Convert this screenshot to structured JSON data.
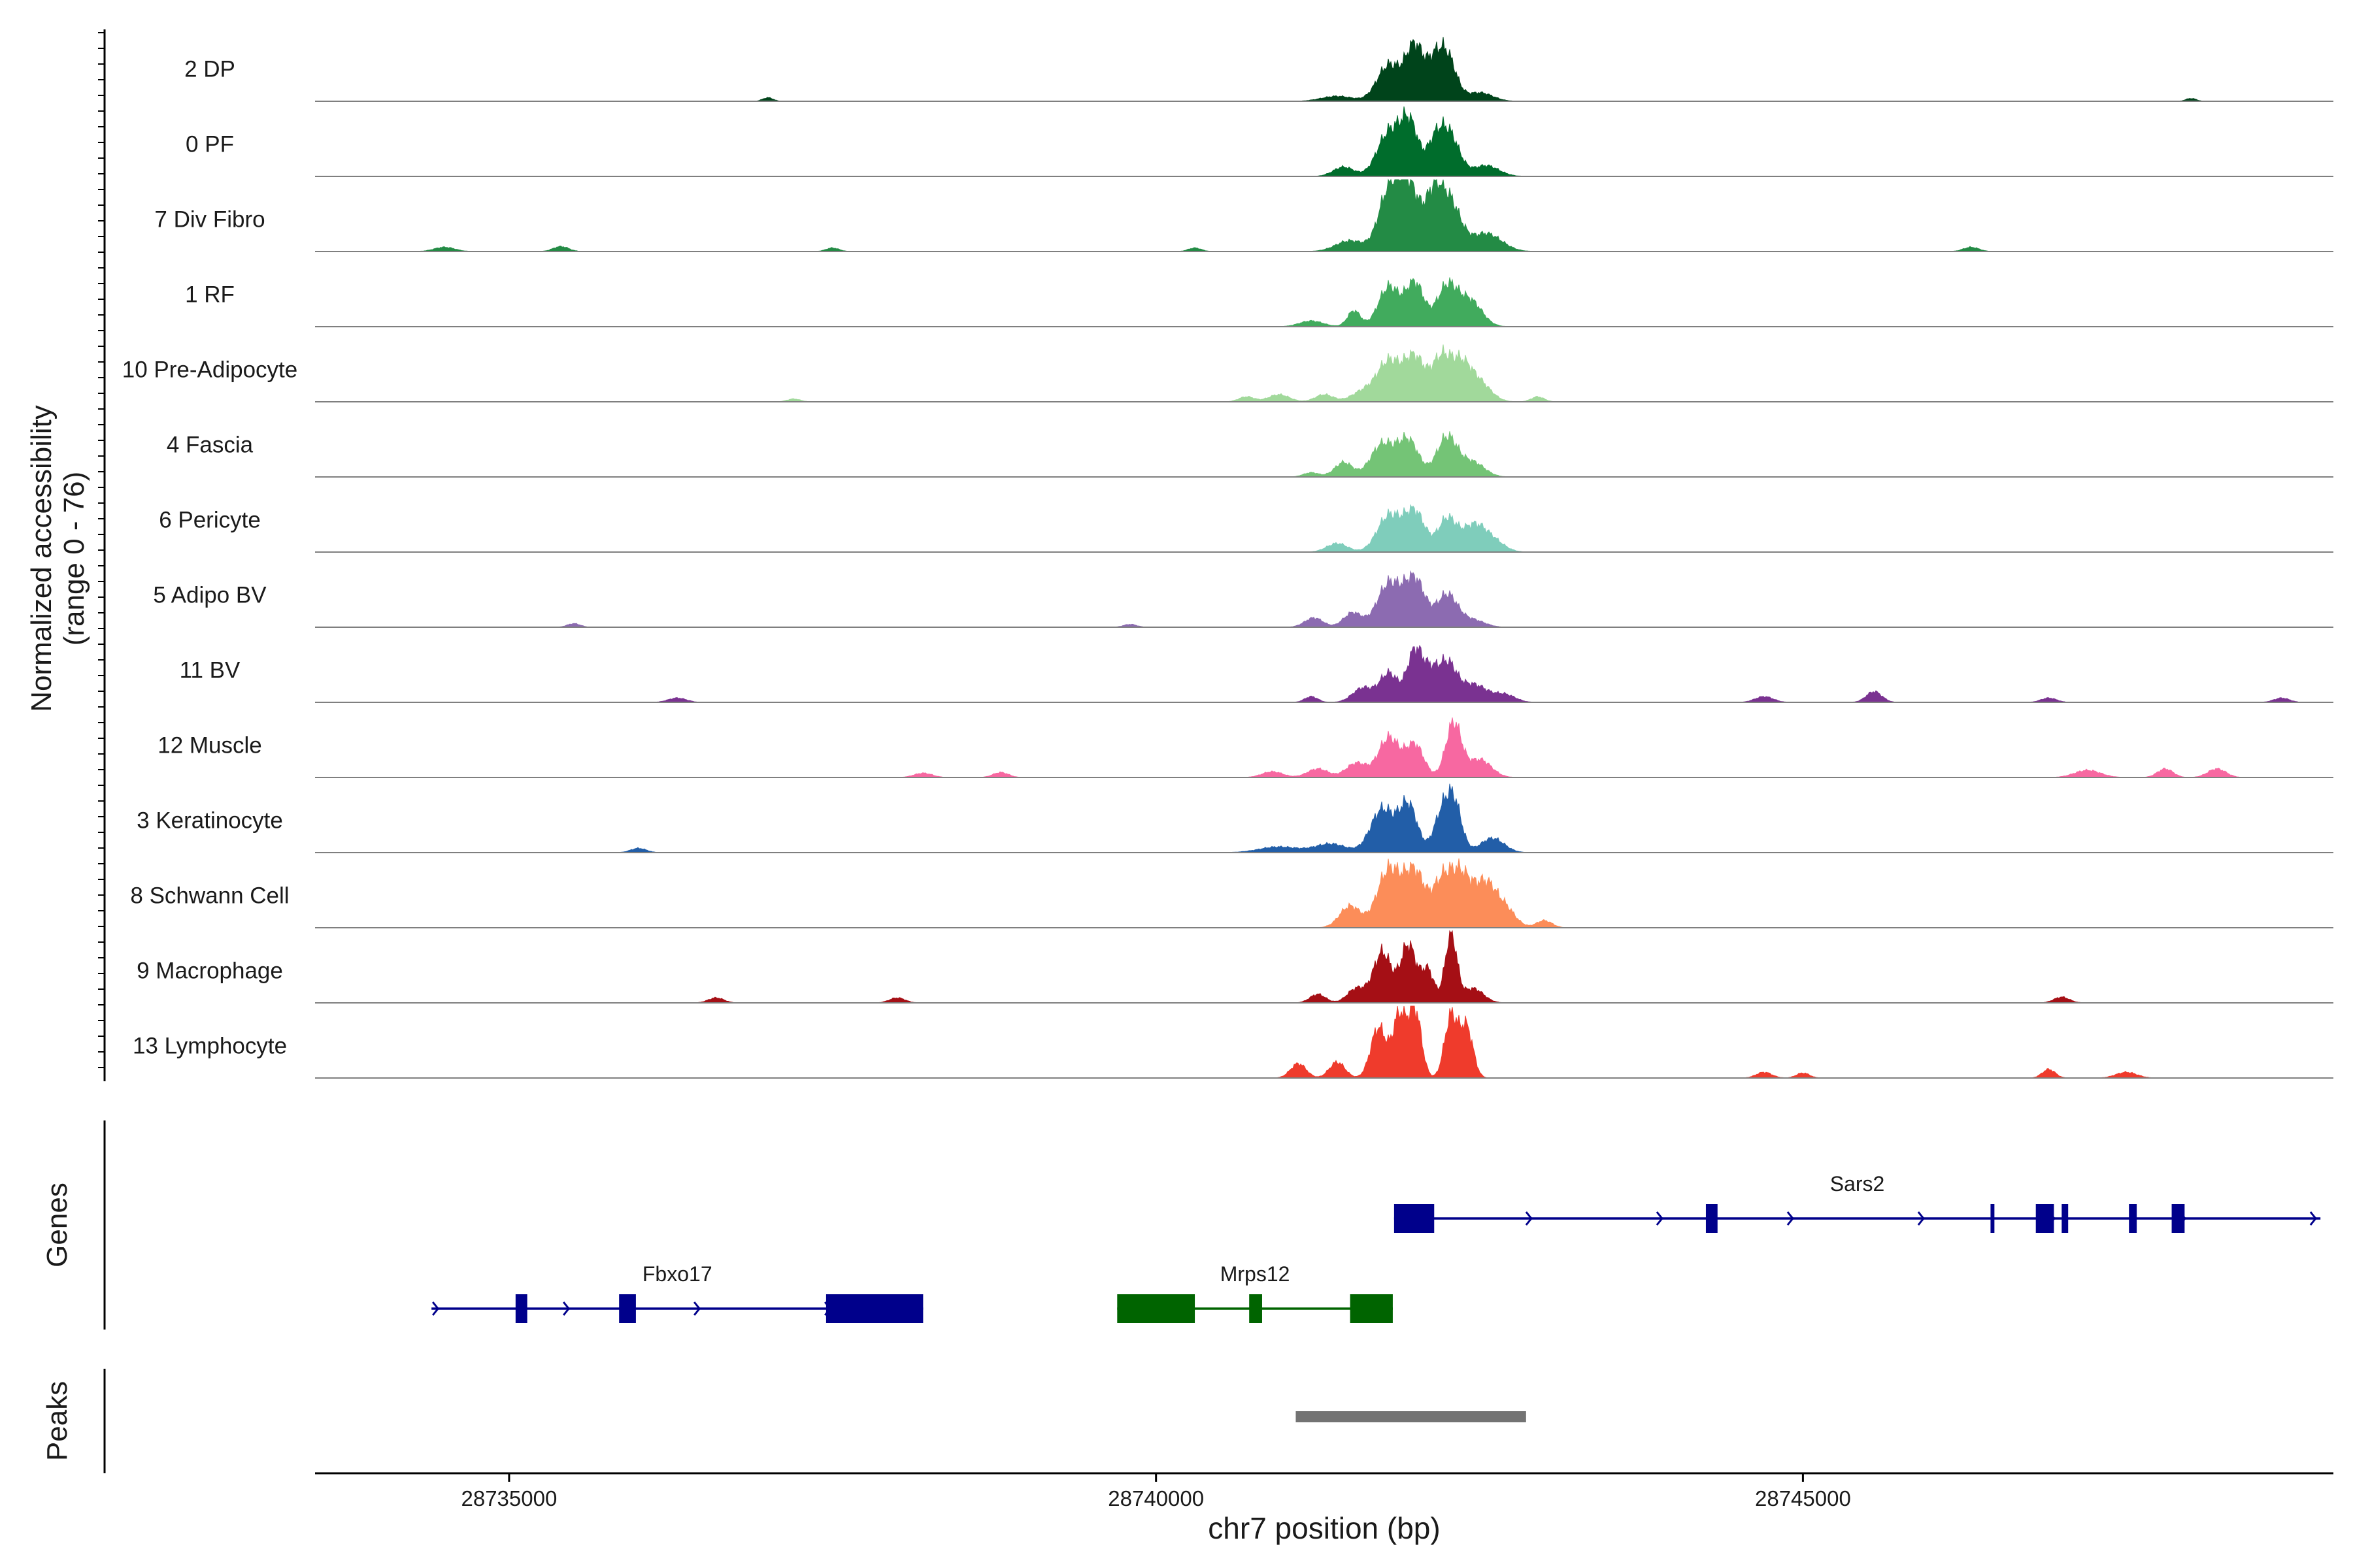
{
  "chart_data": {
    "type": "area",
    "title": "",
    "ylabel_line1": "Normalized accessibility",
    "ylabel_line2": "(range 0 - 76)",
    "y_range": [
      0,
      76
    ],
    "xlabel": "chr7 position (bp)",
    "xlim": [
      28733500,
      28749100
    ],
    "x_ticks": [
      {
        "value": 28735000,
        "label": "28735000"
      },
      {
        "value": 28740000,
        "label": "28740000"
      },
      {
        "value": 28745000,
        "label": "28745000"
      }
    ],
    "tracks": [
      {
        "name": "2 DP",
        "color": "#00441b",
        "peaks": [
          [
            28741400,
            0.07,
            120
          ],
          [
            28741800,
            0.5,
            90
          ],
          [
            28742000,
            0.75,
            70
          ],
          [
            28742150,
            0.4,
            60
          ],
          [
            28742250,
            0.6,
            70
          ],
          [
            28742500,
            0.12,
            100
          ],
          [
            28737000,
            0.05,
            40
          ],
          [
            28748000,
            0.04,
            40
          ]
        ]
      },
      {
        "name": "0 PF",
        "color": "#006d2c",
        "peaks": [
          [
            28741450,
            0.13,
            80
          ],
          [
            28741800,
            0.6,
            90
          ],
          [
            28741960,
            0.7,
            70
          ],
          [
            28742150,
            0.35,
            60
          ],
          [
            28742260,
            0.6,
            80
          ],
          [
            28742550,
            0.15,
            100
          ]
        ]
      },
      {
        "name": "7 Div Fibro",
        "color": "#238b45",
        "peaks": [
          [
            28741500,
            0.15,
            110
          ],
          [
            28741800,
            0.8,
            80
          ],
          [
            28741950,
            0.9,
            80
          ],
          [
            28742150,
            0.75,
            70
          ],
          [
            28742280,
            0.6,
            80
          ],
          [
            28742550,
            0.25,
            120
          ],
          [
            28734500,
            0.06,
            80
          ],
          [
            28735400,
            0.07,
            60
          ],
          [
            28737500,
            0.05,
            50
          ],
          [
            28740300,
            0.05,
            50
          ],
          [
            28746300,
            0.06,
            60
          ]
        ]
      },
      {
        "name": "1 RF",
        "color": "#41ab5d",
        "peaks": [
          [
            28741200,
            0.08,
            90
          ],
          [
            28741530,
            0.22,
            50
          ],
          [
            28741800,
            0.55,
            80
          ],
          [
            28742000,
            0.6,
            70
          ],
          [
            28742250,
            0.55,
            80
          ],
          [
            28742430,
            0.35,
            90
          ]
        ]
      },
      {
        "name": "10 Pre-Adipocyte",
        "color": "#a1d99b",
        "peaks": [
          [
            28740700,
            0.07,
            60
          ],
          [
            28740950,
            0.1,
            80
          ],
          [
            28741300,
            0.1,
            70
          ],
          [
            28741600,
            0.14,
            90
          ],
          [
            28741800,
            0.55,
            90
          ],
          [
            28742000,
            0.6,
            80
          ],
          [
            28742200,
            0.55,
            70
          ],
          [
            28742350,
            0.5,
            80
          ],
          [
            28742500,
            0.25,
            90
          ],
          [
            28742950,
            0.07,
            50
          ],
          [
            28737200,
            0.04,
            50
          ]
        ]
      },
      {
        "name": "4 Fascia",
        "color": "#74c476",
        "peaks": [
          [
            28741450,
            0.2,
            70
          ],
          [
            28741750,
            0.45,
            90
          ],
          [
            28741950,
            0.5,
            80
          ],
          [
            28742250,
            0.55,
            80
          ],
          [
            28742450,
            0.2,
            90
          ],
          [
            28741200,
            0.06,
            60
          ]
        ]
      },
      {
        "name": "6 Pericyte",
        "color": "#7fcdbb",
        "peaks": [
          [
            28741400,
            0.12,
            80
          ],
          [
            28741800,
            0.5,
            90
          ],
          [
            28742000,
            0.55,
            80
          ],
          [
            28742250,
            0.45,
            70
          ],
          [
            28742450,
            0.35,
            90
          ],
          [
            28742600,
            0.15,
            90
          ]
        ]
      },
      {
        "name": "5 Adipo BV",
        "color": "#8c6bb1",
        "peaks": [
          [
            28741220,
            0.13,
            70
          ],
          [
            28741520,
            0.2,
            70
          ],
          [
            28741800,
            0.6,
            90
          ],
          [
            28742000,
            0.65,
            80
          ],
          [
            28742250,
            0.45,
            80
          ],
          [
            28742450,
            0.1,
            90
          ],
          [
            28735500,
            0.05,
            50
          ],
          [
            28739800,
            0.04,
            50
          ]
        ]
      },
      {
        "name": "11 BV",
        "color": "#7a3291",
        "peaks": [
          [
            28741200,
            0.08,
            50
          ],
          [
            28741600,
            0.2,
            80
          ],
          [
            28741800,
            0.4,
            70
          ],
          [
            28742000,
            0.7,
            60
          ],
          [
            28742120,
            0.35,
            60
          ],
          [
            28742250,
            0.5,
            70
          ],
          [
            28742450,
            0.25,
            110
          ],
          [
            28742700,
            0.1,
            80
          ],
          [
            28736300,
            0.06,
            70
          ],
          [
            28744700,
            0.08,
            70
          ],
          [
            28745550,
            0.15,
            60
          ],
          [
            28746900,
            0.06,
            60
          ],
          [
            28748700,
            0.06,
            60
          ]
        ]
      },
      {
        "name": "12 Muscle",
        "color": "#f768a1",
        "peaks": [
          [
            28741250,
            0.12,
            80
          ],
          [
            28741550,
            0.2,
            80
          ],
          [
            28741800,
            0.55,
            80
          ],
          [
            28742000,
            0.45,
            70
          ],
          [
            28742300,
            0.75,
            60
          ],
          [
            28742500,
            0.25,
            90
          ],
          [
            28738200,
            0.06,
            70
          ],
          [
            28738800,
            0.07,
            60
          ],
          [
            28740900,
            0.08,
            80
          ],
          [
            28747200,
            0.1,
            100
          ],
          [
            28747800,
            0.12,
            60
          ],
          [
            28748200,
            0.12,
            70
          ]
        ]
      },
      {
        "name": "3 Keratinocyte",
        "color": "#225ea8",
        "peaks": [
          [
            28740950,
            0.08,
            150
          ],
          [
            28741350,
            0.12,
            120
          ],
          [
            28741750,
            0.6,
            90
          ],
          [
            28741950,
            0.65,
            70
          ],
          [
            28742200,
            0.45,
            60
          ],
          [
            28742300,
            0.7,
            60
          ],
          [
            28742600,
            0.2,
            90
          ],
          [
            28736000,
            0.06,
            60
          ]
        ]
      },
      {
        "name": "8 Schwann Cell",
        "color": "#fc8d59",
        "peaks": [
          [
            28741500,
            0.3,
            80
          ],
          [
            28741800,
            0.8,
            90
          ],
          [
            28742000,
            0.75,
            80
          ],
          [
            28742200,
            0.5,
            70
          ],
          [
            28742350,
            0.75,
            90
          ],
          [
            28742550,
            0.55,
            80
          ],
          [
            28742700,
            0.25,
            80
          ],
          [
            28743000,
            0.1,
            60
          ]
        ]
      },
      {
        "name": "9 Macrophage",
        "color": "#a50f15",
        "peaks": [
          [
            28741250,
            0.12,
            60
          ],
          [
            28741550,
            0.2,
            70
          ],
          [
            28741750,
            0.7,
            70
          ],
          [
            28741950,
            0.8,
            60
          ],
          [
            28742100,
            0.45,
            50
          ],
          [
            28742280,
            0.95,
            45
          ],
          [
            28742450,
            0.2,
            80
          ],
          [
            28738000,
            0.07,
            60
          ],
          [
            28736600,
            0.07,
            60
          ],
          [
            28747000,
            0.08,
            60
          ]
        ]
      },
      {
        "name": "13 Lymphocyte",
        "color": "#ef3b2c",
        "peaks": [
          [
            28741100,
            0.2,
            60
          ],
          [
            28741400,
            0.22,
            60
          ],
          [
            28741720,
            0.7,
            60
          ],
          [
            28741880,
            0.85,
            50
          ],
          [
            28742000,
            0.95,
            50
          ],
          [
            28742280,
            0.85,
            50
          ],
          [
            28742400,
            0.7,
            50
          ],
          [
            28744700,
            0.08,
            60
          ],
          [
            28745000,
            0.07,
            50
          ],
          [
            28746900,
            0.12,
            50
          ],
          [
            28747500,
            0.08,
            80
          ]
        ]
      }
    ],
    "genes": [
      {
        "name": "Fbxo17",
        "strand": "+",
        "color": "#00008b",
        "row": 2,
        "start": 28734400,
        "end": 28738200,
        "exons": [
          [
            28735050,
            28735140
          ],
          [
            28735850,
            28735980
          ],
          [
            28737450,
            28738200
          ]
        ]
      },
      {
        "name": "Mrps12",
        "strand": "-",
        "color": "#006400",
        "row": 2,
        "start": 28739700,
        "end": 28741830,
        "exons": [
          [
            28739700,
            28740300
          ],
          [
            28740720,
            28740820
          ],
          [
            28741500,
            28741830
          ]
        ]
      },
      {
        "name": "Sars2",
        "strand": "+",
        "color": "#00008b",
        "row": 1,
        "start": 28741840,
        "end": 28749000,
        "exons": [
          [
            28741840,
            28742150
          ],
          [
            28744250,
            28744340
          ],
          [
            28746450,
            28746480
          ],
          [
            28746800,
            28746940
          ],
          [
            28747000,
            28747050
          ],
          [
            28747520,
            28747580
          ],
          [
            28747850,
            28747950
          ]
        ]
      }
    ],
    "track_labels": {
      "genes": "Genes",
      "peaks": "Peaks"
    },
    "peak_regions": [
      {
        "start": 28741080,
        "end": 28742860,
        "color": "#737373"
      }
    ]
  }
}
